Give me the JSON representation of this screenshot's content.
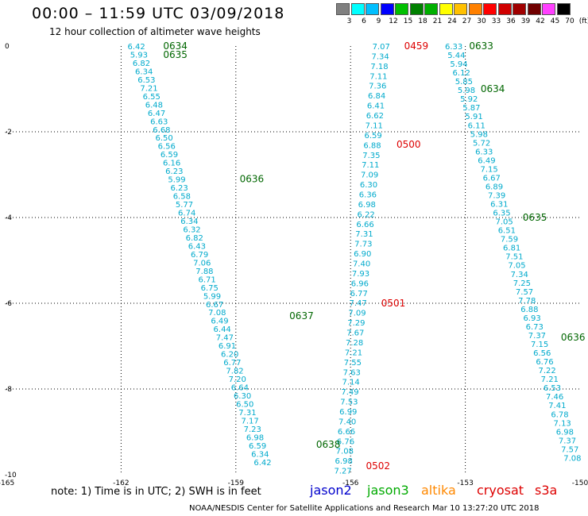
{
  "title": "00:00 – 11:59 UTC 03/09/2018",
  "subtitle": "12 hour collection of altimeter wave heights",
  "legend": {
    "labels": [
      "3",
      "6",
      "9",
      "12",
      "15",
      "18",
      "21",
      "24",
      "27",
      "30",
      "33",
      "36",
      "39",
      "42",
      "45",
      "70",
      "(ft)"
    ],
    "colors": [
      "#808080",
      "#00ffff",
      "#00bfff",
      "#0000ff",
      "#00c000",
      "#008000",
      "#00b000",
      "#ffff00",
      "#ffc000",
      "#ff8000",
      "#ff0000",
      "#d00000",
      "#a00000",
      "#700000",
      "#ff40ff",
      "#000000"
    ]
  },
  "axes": {
    "x_ticks": [
      "-165",
      "-162",
      "-159",
      "-156",
      "-153",
      "-150"
    ],
    "y_ticks": [
      "0",
      "-2",
      "-4",
      "-6",
      "-8",
      "-10"
    ]
  },
  "tracks": [
    {
      "name": "track-1",
      "color": "#00aacc",
      "start_xy": [
        -161.6,
        0
      ],
      "end_xy": [
        -158.3,
        -9.7
      ],
      "values": [
        "6.42",
        "5.93",
        "6.82",
        "6.34",
        "6.53",
        "7.21",
        "6.55",
        "6.48",
        "6.47",
        "6.63",
        "6.68",
        "6.50",
        "6.56",
        "6.59",
        "6.16",
        "6.23",
        "5.99",
        "6.23",
        "6.58",
        "5.77",
        "6.74",
        "6.34",
        "6.32",
        "6.82",
        "6.43",
        "6.79",
        "7.06",
        "7.88",
        "6.71",
        "6.75",
        "5.99",
        "6.67",
        "7.08",
        "6.49",
        "6.44",
        "7.47",
        "6.91",
        "6.20",
        "6.77",
        "7.82",
        "7.20",
        "6.64",
        "6.30",
        "6.50",
        "7.31",
        "7.17",
        "7.23",
        "6.98",
        "6.59",
        "6.34",
        "6.42"
      ]
    },
    {
      "name": "track-2",
      "color": "#00aacc",
      "start_xy": [
        -155.2,
        0
      ],
      "end_xy": [
        -156.2,
        -9.9
      ],
      "values": [
        "7.07",
        "7.34",
        "7.18",
        "7.11",
        "7.36",
        "6.84",
        "6.41",
        "6.62",
        "7.11",
        "6.59",
        "6.88",
        "7.35",
        "7.11",
        "7.09",
        "6.30",
        "6.36",
        "6.98",
        "6.22",
        "6.66",
        "7.31",
        "7.73",
        "6.90",
        "7.40",
        "7.93",
        "6.96",
        "6.77",
        "7.47",
        "7.09",
        "7.29",
        "7.67",
        "7.28",
        "7.21",
        "7.55",
        "7.63",
        "7.14",
        "7.49",
        "7.53",
        "6.99",
        "7.40",
        "6.66",
        "6.76",
        "7.08",
        "6.98",
        "7.27"
      ]
    },
    {
      "name": "track-3",
      "color": "#00aacc",
      "start_xy": [
        -153.3,
        0
      ],
      "end_xy": [
        -150.2,
        -9.6
      ],
      "values": [
        "6.33",
        "5.44",
        "5.94",
        "6.12",
        "5.85",
        "5.98",
        "5.92",
        "5.87",
        "5.91",
        "6.11",
        "5.98",
        "5.72",
        "6.33",
        "6.49",
        "7.15",
        "6.67",
        "6.89",
        "7.39",
        "6.31",
        "6.35",
        "7.05",
        "6.51",
        "7.59",
        "6.81",
        "7.51",
        "7.05",
        "7.34",
        "7.25",
        "7.57",
        "7.78",
        "6.88",
        "6.93",
        "6.73",
        "7.37",
        "7.15",
        "6.56",
        "6.76",
        "7.22",
        "7.21",
        "6.53",
        "7.46",
        "7.41",
        "6.78",
        "7.13",
        "6.98",
        "7.37",
        "7.57",
        "7.08"
      ]
    }
  ],
  "time_labels": [
    {
      "text": "0634",
      "color": "#006600",
      "xy": [
        -160.9,
        0
      ]
    },
    {
      "text": "0635",
      "color": "#006600",
      "xy": [
        -160.9,
        -0.2
      ]
    },
    {
      "text": "0636",
      "color": "#006600",
      "xy": [
        -158.9,
        -3.1
      ]
    },
    {
      "text": "0637",
      "color": "#006600",
      "xy": [
        -157.6,
        -6.3
      ]
    },
    {
      "text": "0638",
      "color": "#006600",
      "xy": [
        -156.9,
        -9.3
      ]
    },
    {
      "text": "0459",
      "color": "#dd0000",
      "xy": [
        -154.6,
        0
      ]
    },
    {
      "text": "0500",
      "color": "#dd0000",
      "xy": [
        -154.8,
        -2.3
      ]
    },
    {
      "text": "0501",
      "color": "#dd0000",
      "xy": [
        -155.2,
        -6.0
      ]
    },
    {
      "text": "0502",
      "color": "#dd0000",
      "xy": [
        -155.6,
        -9.8
      ]
    },
    {
      "text": "0633",
      "color": "#006600",
      "xy": [
        -152.9,
        0
      ]
    },
    {
      "text": "0634",
      "color": "#006600",
      "xy": [
        -152.6,
        -1.0
      ]
    },
    {
      "text": "0635",
      "color": "#006600",
      "xy": [
        -151.5,
        -4.0
      ]
    },
    {
      "text": "0636",
      "color": "#006600",
      "xy": [
        -150.5,
        -6.8
      ]
    }
  ],
  "note": "note:  1) Time is in UTC;  2) SWH is in feet",
  "satellites": [
    {
      "name": "jason2",
      "color": "#0000cc"
    },
    {
      "name": "jason3",
      "color": "#00aa00"
    },
    {
      "name": "altika",
      "color": "#ff8800"
    },
    {
      "name": "cryosat",
      "color": "#dd0000"
    },
    {
      "name": "s3a",
      "color": "#dd0000"
    }
  ],
  "credit": "NOAA/NESDIS Center for Satellite Applications and Research    Mar 10 13:27:20 UTC 2018"
}
